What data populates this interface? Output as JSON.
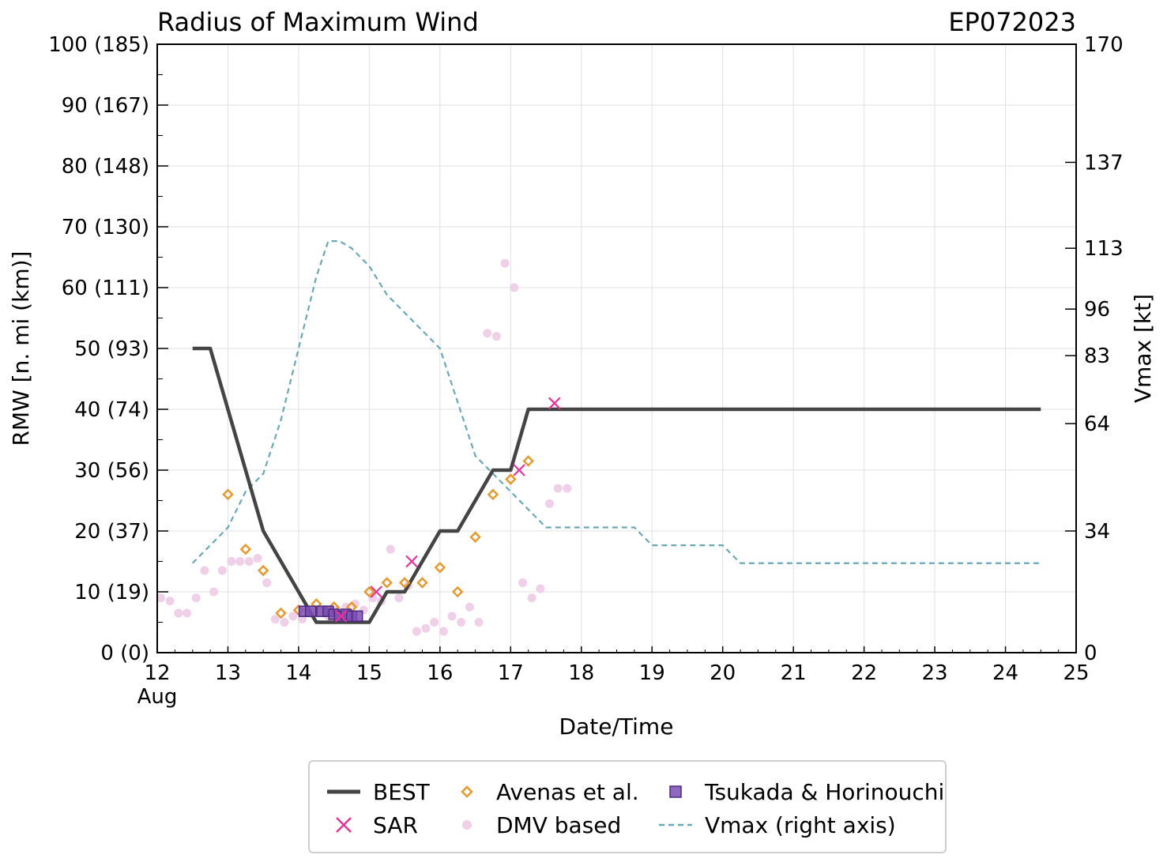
{
  "title": "Radius of Maximum Wind",
  "storm_id": "EP072023",
  "legend": {
    "best": "BEST",
    "sar": "SAR",
    "avenas": "Avenas et al.",
    "dmv": "DMV based",
    "tsukada": "Tsukada & Horinouchi",
    "vmax": "Vmax (right axis)"
  },
  "colors": {
    "best": "#444444",
    "sar": "#e8329a",
    "avenas": "#e69a2e",
    "dmv": "#f0cfe8",
    "tsukada": "#7d4fb3",
    "vmax": "#6aa8b8",
    "grid": "#e0e0e0"
  },
  "chart_data": {
    "type": "line",
    "title": "Radius of Maximum Wind",
    "xlabel": "Date/Time",
    "ylabel": "RMW [n. mi (km)]",
    "y2label": "Vmax [kt]",
    "xlim": [
      12,
      25
    ],
    "ylim": [
      0,
      100
    ],
    "y2lim": [
      0,
      170
    ],
    "x_ticks": [
      "12",
      "13",
      "14",
      "15",
      "16",
      "17",
      "18",
      "19",
      "20",
      "21",
      "22",
      "23",
      "24",
      "25"
    ],
    "x_month_label": "Aug",
    "y_ticks": [
      {
        "value": 0,
        "label": "0 (0)"
      },
      {
        "value": 10,
        "label": "10 (19)"
      },
      {
        "value": 20,
        "label": "20 (37)"
      },
      {
        "value": 30,
        "label": "30 (56)"
      },
      {
        "value": 40,
        "label": "40 (74)"
      },
      {
        "value": 50,
        "label": "50 (93)"
      },
      {
        "value": 60,
        "label": "60 (111)"
      },
      {
        "value": 70,
        "label": "70 (130)"
      },
      {
        "value": 80,
        "label": "80 (148)"
      },
      {
        "value": 90,
        "label": "90 (167)"
      },
      {
        "value": 100,
        "label": "100 (185)"
      }
    ],
    "y2_ticks": [
      {
        "value": 0,
        "label": "0"
      },
      {
        "value": 34,
        "label": "34"
      },
      {
        "value": 64,
        "label": "64"
      },
      {
        "value": 83,
        "label": "83"
      },
      {
        "value": 96,
        "label": "96"
      },
      {
        "value": 113,
        "label": "113"
      },
      {
        "value": 137,
        "label": "137"
      },
      {
        "value": 170,
        "label": "170"
      }
    ],
    "series": [
      {
        "name": "BEST",
        "kind": "line",
        "x": [
          12.5,
          12.75,
          13.0,
          13.25,
          13.5,
          13.75,
          14.0,
          14.25,
          14.5,
          14.75,
          15.0,
          15.25,
          15.5,
          15.75,
          16.0,
          16.25,
          16.5,
          16.75,
          17.0,
          17.25,
          17.5,
          18.0,
          19.0,
          20.0,
          21.0,
          22.0,
          23.0,
          24.0,
          24.5
        ],
        "values": [
          50,
          50,
          40,
          30,
          20,
          15,
          10,
          5,
          5,
          5,
          5,
          10,
          10,
          15,
          20,
          20,
          25,
          30,
          30,
          40,
          40,
          40,
          40,
          40,
          40,
          40,
          40,
          40,
          40
        ]
      },
      {
        "name": "SAR",
        "kind": "x",
        "x": [
          14.6,
          15.1,
          15.6,
          17.12,
          17.62
        ],
        "values": [
          6,
          10,
          15,
          30,
          41
        ]
      },
      {
        "name": "Avenas et al.",
        "kind": "diamond",
        "x": [
          13.0,
          13.25,
          13.5,
          13.75,
          14.0,
          14.25,
          14.5,
          14.75,
          15.0,
          15.25,
          15.5,
          15.75,
          16.0,
          16.25,
          16.5,
          16.75,
          17.0,
          17.25
        ],
        "values": [
          26,
          17,
          13.5,
          6.5,
          7,
          8,
          7.5,
          7.5,
          10,
          11.5,
          11.5,
          11.5,
          14,
          10,
          19,
          26,
          28.5,
          31.5
        ]
      },
      {
        "name": "DMV based",
        "kind": "dot",
        "x": [
          12.05,
          12.18,
          12.3,
          12.42,
          12.55,
          12.67,
          12.8,
          12.92,
          13.05,
          13.17,
          13.3,
          13.42,
          13.55,
          13.67,
          13.8,
          13.92,
          14.05,
          14.17,
          14.3,
          14.42,
          14.55,
          14.67,
          14.8,
          14.92,
          15.05,
          15.17,
          15.3,
          15.42,
          15.55,
          15.67,
          15.8,
          15.92,
          16.05,
          16.17,
          16.3,
          16.42,
          16.55,
          16.67,
          16.8,
          16.92,
          17.05,
          17.17,
          17.3,
          17.42,
          17.55,
          17.67,
          17.8
        ],
        "values": [
          9,
          8.5,
          6.5,
          6.5,
          9,
          13.5,
          10,
          13.5,
          15,
          15,
          15,
          15.5,
          11.5,
          5.5,
          5,
          6,
          5.5,
          6.5,
          7,
          6,
          7,
          7.5,
          8,
          7,
          9,
          8.5,
          17,
          9,
          11,
          3.5,
          4,
          5,
          3.5,
          6,
          5,
          7.5,
          5,
          52.5,
          52,
          64,
          60,
          11.5,
          9,
          10.5,
          24.5,
          27,
          27
        ]
      },
      {
        "name": "Tsukada & Horinouchi",
        "kind": "square",
        "x": [
          14.08,
          14.17,
          14.33,
          14.42,
          14.5,
          14.58,
          14.67,
          14.75,
          14.83
        ],
        "values": [
          6.8,
          6.8,
          6.8,
          6.8,
          6.3,
          6.0,
          6.3,
          6.0,
          6.0
        ]
      },
      {
        "name": "Vmax (right axis)",
        "kind": "dashed",
        "axis": "right",
        "x": [
          12.5,
          12.75,
          13.0,
          13.25,
          13.5,
          13.75,
          14.0,
          14.25,
          14.42,
          14.58,
          14.75,
          15.0,
          15.25,
          15.5,
          15.75,
          16.0,
          16.25,
          16.5,
          16.75,
          17.0,
          17.25,
          17.5,
          18.0,
          18.5,
          18.75,
          19.0,
          19.5,
          20.0,
          20.25,
          21.0,
          22.0,
          23.0,
          24.0,
          24.5
        ],
        "values": [
          25,
          30,
          35,
          45,
          50,
          65,
          85,
          105,
          115,
          115,
          113,
          108,
          100,
          95,
          90,
          85,
          70,
          55,
          50,
          45,
          40,
          35,
          35,
          35,
          35,
          30,
          30,
          30,
          25,
          25,
          25,
          25,
          25,
          25
        ]
      }
    ]
  }
}
